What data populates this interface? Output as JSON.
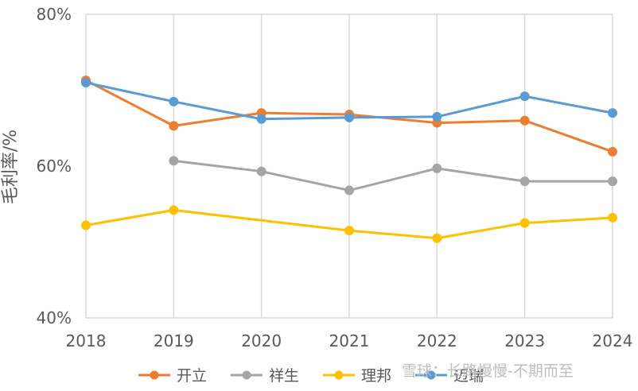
{
  "chart_data": {
    "type": "line",
    "title": "",
    "xlabel": "",
    "ylabel": "毛利率/%",
    "ylim": [
      40,
      80
    ],
    "yticks": [
      40,
      60,
      80
    ],
    "ytick_labels": [
      "40%",
      "60%",
      "80%"
    ],
    "categories": [
      "2018",
      "2019",
      "2020",
      "2021",
      "2022",
      "2023",
      "2024"
    ],
    "grid": "vertical",
    "legend_position": "bottom",
    "series": [
      {
        "name": "开立",
        "color": "#ED7D31",
        "values": [
          71.3,
          65.3,
          67.0,
          66.8,
          65.7,
          66.0,
          61.9
        ]
      },
      {
        "name": "祥生",
        "color": "#A5A5A5",
        "values": [
          null,
          60.7,
          59.3,
          56.8,
          59.7,
          58.0,
          58.0
        ]
      },
      {
        "name": "理邦",
        "color": "#FFC000",
        "values": [
          52.2,
          54.2,
          null,
          51.5,
          50.5,
          52.5,
          53.2
        ]
      },
      {
        "name": "迈瑞",
        "color": "#5B9BD5",
        "values": [
          71.0,
          68.5,
          66.2,
          66.4,
          66.5,
          69.2,
          67.0
        ]
      }
    ]
  },
  "watermark": "雪球：长路慢慢-不期而至"
}
